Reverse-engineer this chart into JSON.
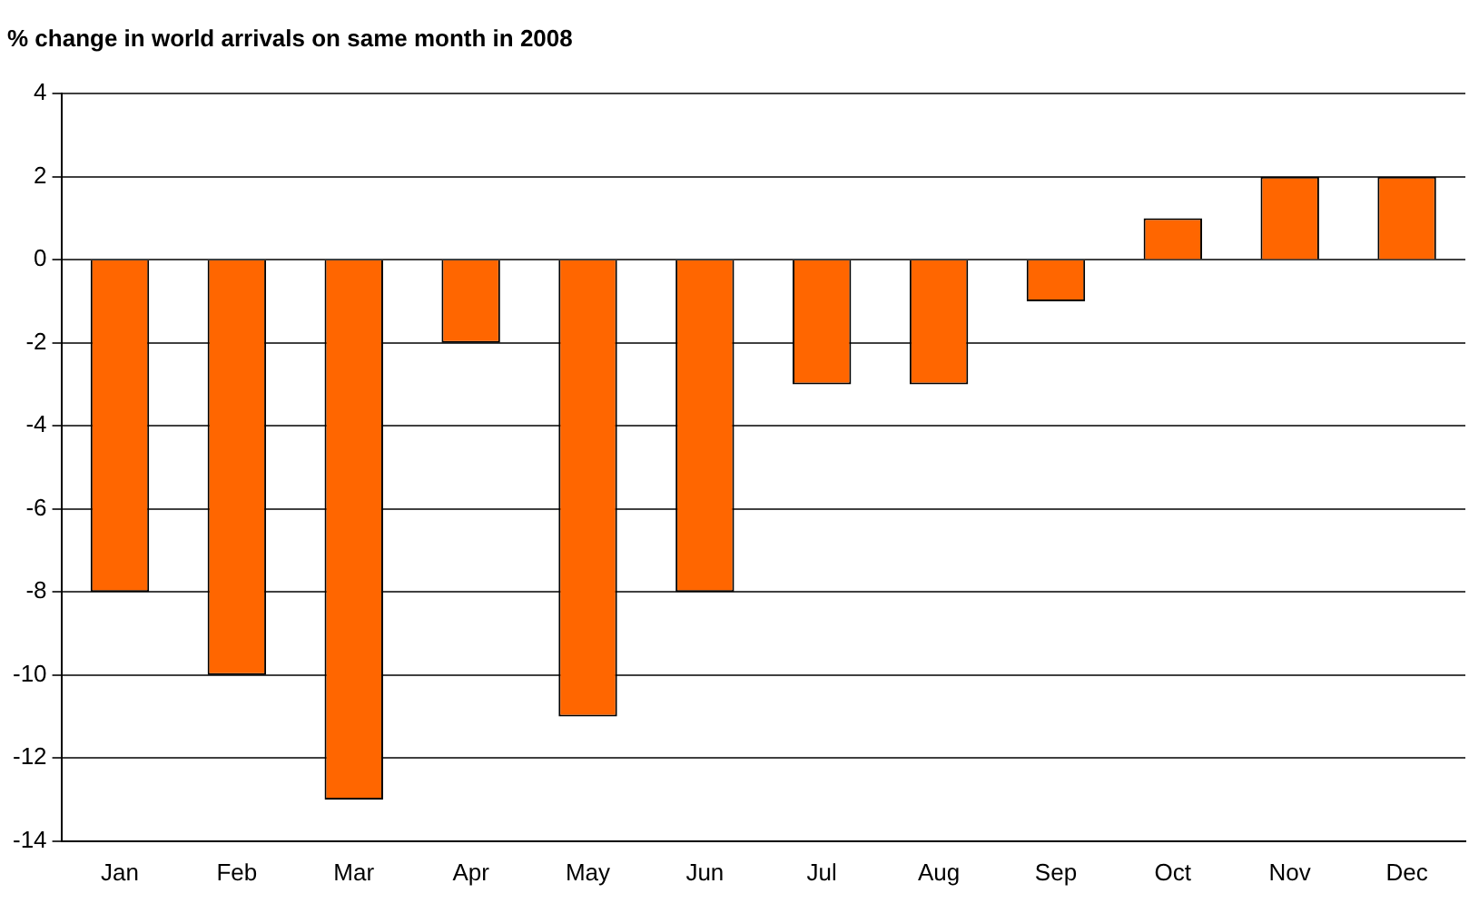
{
  "chart_data": {
    "type": "bar",
    "title": "% change in world arrivals on same month in 2008",
    "categories": [
      "Jan",
      "Feb",
      "Mar",
      "Apr",
      "May",
      "Jun",
      "Jul",
      "Aug",
      "Sep",
      "Oct",
      "Nov",
      "Dec"
    ],
    "values": [
      -8,
      -10,
      -13,
      -2,
      -11,
      -8,
      -3,
      -3,
      -1,
      1,
      2,
      2
    ],
    "color": "#ff6600",
    "ylim": [
      -14,
      4
    ],
    "yticks": [
      -14,
      -12,
      -10,
      -8,
      -6,
      -4,
      -2,
      0,
      2,
      4
    ],
    "grid": "y",
    "legend": false
  }
}
